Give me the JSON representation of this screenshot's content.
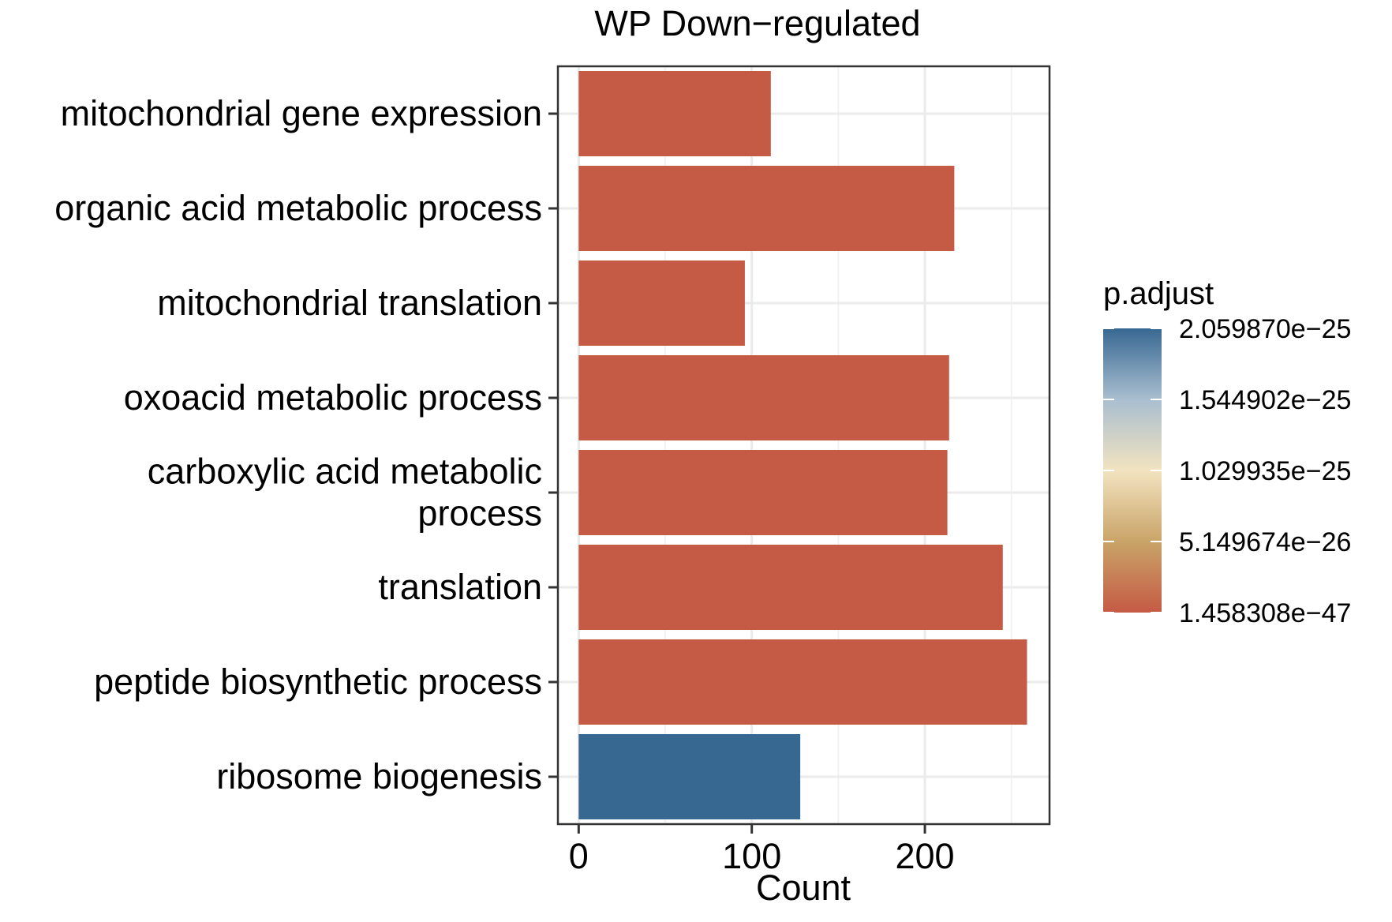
{
  "chart_data": {
    "type": "bar",
    "orientation": "horizontal",
    "title": "WP Down−regulated",
    "xlabel": "Count",
    "ylabel": "",
    "xlim": [
      -12,
      272
    ],
    "x_ticks": [
      0,
      100,
      200
    ],
    "x_tick_labels": [
      "0",
      "100",
      "200"
    ],
    "grid": true,
    "categories": [
      "mitochondrial gene expression",
      "organic acid metabolic process",
      "mitochondrial translation",
      "oxoacid metabolic process",
      "carboxylic acid metabolic process",
      "translation",
      "peptide biosynthetic process",
      "ribosome biogenesis"
    ],
    "category_label_lines": [
      [
        "mitochondrial gene expression"
      ],
      [
        "organic acid metabolic process"
      ],
      [
        "mitochondrial translation"
      ],
      [
        "oxoacid metabolic process"
      ],
      [
        "carboxylic acid metabolic",
        "process"
      ],
      [
        "translation"
      ],
      [
        "peptide biosynthetic process"
      ],
      [
        "ribosome biogenesis"
      ]
    ],
    "series": [
      {
        "values": [
          111,
          217,
          96,
          214,
          213,
          245,
          259,
          128
        ],
        "colors": [
          "#C55A45",
          "#C55A45",
          "#C55A45",
          "#C55A45",
          "#C55A45",
          "#C55A45",
          "#C55A45",
          "#376891"
        ]
      }
    ],
    "legend": {
      "title": "p.adjust",
      "placement": "right",
      "type": "colorbar",
      "labels": [
        "2.059870e−25",
        "1.544902e−25",
        "1.029935e−25",
        "5.149674e−26",
        "1.458308e−47"
      ],
      "gradient_colors": [
        "#376891",
        "#A9BED0",
        "#F2E3C0",
        "#C9A468",
        "#C55A45"
      ]
    }
  }
}
